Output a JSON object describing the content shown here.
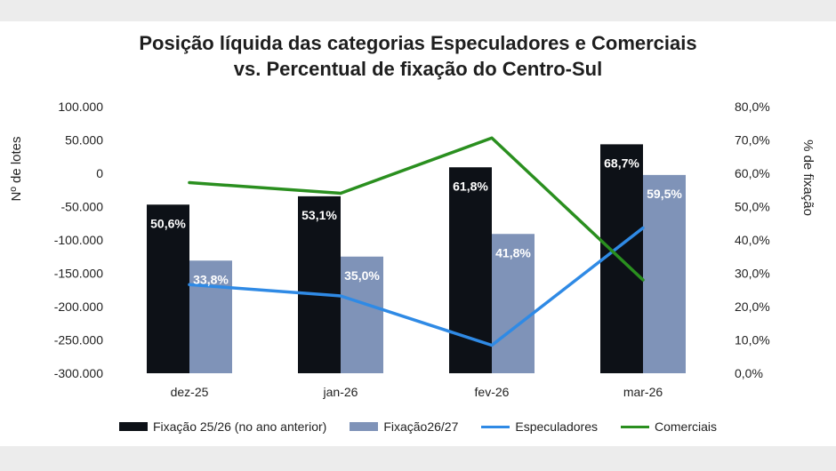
{
  "chart_data": {
    "type": "bar+line",
    "title_line1": "Posição líquida das categorias Especuladores e Comerciais",
    "title_line2": "vs. Percentual de fixação do Centro-Sul",
    "ylabel_left": "Nº de lotes",
    "ylabel_right": "% de fixação",
    "ylim_left": [
      -300000,
      100000
    ],
    "ylim_right": [
      0,
      80
    ],
    "yticks_left": [
      "100.000",
      "50.000",
      "0",
      "-50.000",
      "-100.000",
      "-150.000",
      "-200.000",
      "-250.000",
      "-300.000"
    ],
    "yticks_right": [
      "80,0%",
      "70,0%",
      "60,0%",
      "50,0%",
      "40,0%",
      "30,0%",
      "20,0%",
      "10,0%",
      "0,0%"
    ],
    "categories": [
      "dez-25",
      "jan-26",
      "fev-26",
      "mar-26"
    ],
    "bar_series": [
      {
        "name": "Fixação 25/26 (no ano anterior)",
        "color": "#0d1117",
        "label_color": "#ffffff",
        "values": [
          50.6,
          53.1,
          61.8,
          68.7
        ],
        "labels": [
          "50,6%",
          "53,1%",
          "61,8%",
          "68,7%"
        ]
      },
      {
        "name": "Fixação26/27",
        "color": "#7f93b8",
        "label_color": "#ffffff",
        "values": [
          33.8,
          35.0,
          41.8,
          59.5
        ],
        "labels": [
          "33,8%",
          "35,0%",
          "41,8%",
          "59,5%"
        ]
      }
    ],
    "line_series": [
      {
        "name": "Especuladores",
        "color": "#2f8ae5",
        "values": [
          -167000,
          -184000,
          -258000,
          -82000
        ]
      },
      {
        "name": "Comerciais",
        "color": "#2a8f1f",
        "values": [
          -14000,
          -30000,
          53000,
          -160000
        ]
      }
    ],
    "legend_position": "bottom"
  }
}
